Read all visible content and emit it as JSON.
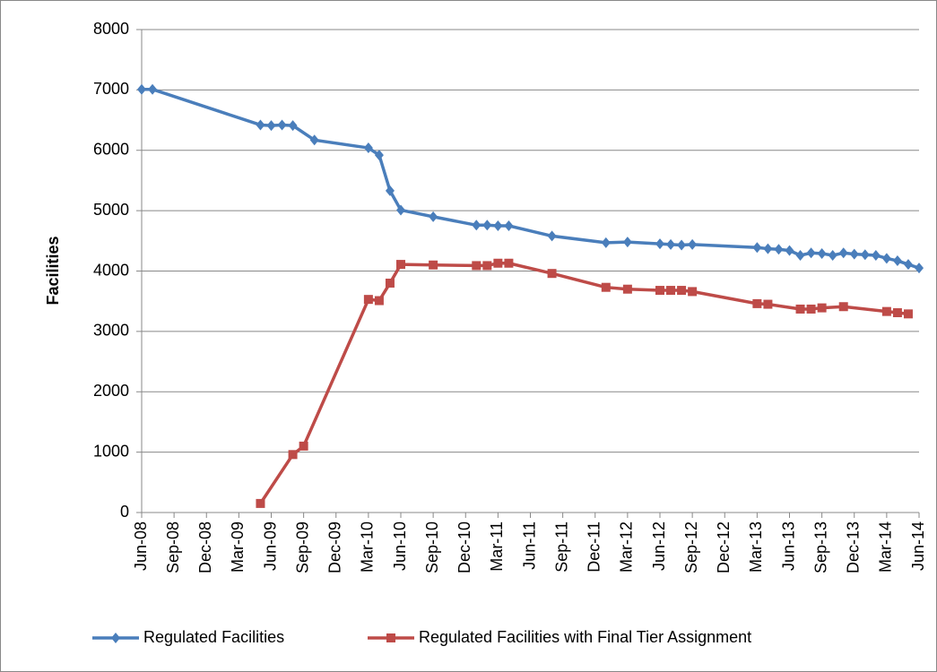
{
  "chart_data": {
    "type": "line",
    "y_label": "Facilities",
    "xlim": [
      "2008-06",
      "2014-06"
    ],
    "xticks": [
      {
        "value": "2008-06",
        "label": "Jun-08"
      },
      {
        "value": "2008-09",
        "label": "Sep-08"
      },
      {
        "value": "2008-12",
        "label": "Dec-08"
      },
      {
        "value": "2009-03",
        "label": "Mar-09"
      },
      {
        "value": "2009-06",
        "label": "Jun-09"
      },
      {
        "value": "2009-09",
        "label": "Sep-09"
      },
      {
        "value": "2009-12",
        "label": "Dec-09"
      },
      {
        "value": "2010-03",
        "label": "Mar-10"
      },
      {
        "value": "2010-06",
        "label": "Jun-10"
      },
      {
        "value": "2010-09",
        "label": "Sep-10"
      },
      {
        "value": "2010-12",
        "label": "Dec-10"
      },
      {
        "value": "2011-03",
        "label": "Mar-11"
      },
      {
        "value": "2011-06",
        "label": "Jun-11"
      },
      {
        "value": "2011-09",
        "label": "Sep-11"
      },
      {
        "value": "2011-12",
        "label": "Dec-11"
      },
      {
        "value": "2012-03",
        "label": "Mar-12"
      },
      {
        "value": "2012-06",
        "label": "Jun-12"
      },
      {
        "value": "2012-09",
        "label": "Sep-12"
      },
      {
        "value": "2012-12",
        "label": "Dec-12"
      },
      {
        "value": "2013-03",
        "label": "Mar-13"
      },
      {
        "value": "2013-06",
        "label": "Jun-13"
      },
      {
        "value": "2013-09",
        "label": "Sep-13"
      },
      {
        "value": "2013-12",
        "label": "Dec-13"
      },
      {
        "value": "2014-03",
        "label": "Mar-14"
      },
      {
        "value": "2014-06",
        "label": "Jun-14"
      }
    ],
    "ylim": [
      0,
      8000
    ],
    "yticks": [
      0,
      1000,
      2000,
      3000,
      4000,
      5000,
      6000,
      7000,
      8000
    ],
    "grid": true,
    "legend": "bottom",
    "series": [
      {
        "name": "Regulated Facilities",
        "color": "#4a7ebb",
        "marker": "diamond",
        "x": [
          "2008-06",
          "2008-07",
          "2009-05",
          "2009-06",
          "2009-07",
          "2009-08",
          "2009-10",
          "2010-03",
          "2010-04",
          "2010-05",
          "2010-06",
          "2010-09",
          "2011-01",
          "2011-02",
          "2011-03",
          "2011-04",
          "2011-08",
          "2012-01",
          "2012-03",
          "2012-06",
          "2012-07",
          "2012-08",
          "2012-09",
          "2013-03",
          "2013-04",
          "2013-05",
          "2013-06",
          "2013-07",
          "2013-08",
          "2013-09",
          "2013-10",
          "2013-11",
          "2013-12",
          "2014-01",
          "2014-02",
          "2014-03",
          "2014-04",
          "2014-05",
          "2014-06"
        ],
        "values": [
          7010,
          7010,
          6420,
          6410,
          6420,
          6410,
          6170,
          6040,
          5920,
          5330,
          5010,
          4900,
          4760,
          4760,
          4750,
          4750,
          4580,
          4470,
          4480,
          4450,
          4440,
          4430,
          4440,
          4390,
          4370,
          4360,
          4340,
          4260,
          4300,
          4290,
          4260,
          4300,
          4280,
          4270,
          4260,
          4210,
          4170,
          4110,
          4050
        ]
      },
      {
        "name": "Regulated Facilities with Final Tier Assignment",
        "color": "#be4b48",
        "marker": "square",
        "x": [
          "2009-05",
          "2009-08",
          "2009-09",
          "2010-03",
          "2010-04",
          "2010-05",
          "2010-06",
          "2010-09",
          "2011-01",
          "2011-02",
          "2011-03",
          "2011-04",
          "2011-08",
          "2012-01",
          "2012-03",
          "2012-06",
          "2012-07",
          "2012-08",
          "2012-09",
          "2013-03",
          "2013-04",
          "2013-07",
          "2013-08",
          "2013-09",
          "2013-11",
          "2014-03",
          "2014-04",
          "2014-05"
        ],
        "values": [
          150,
          960,
          1100,
          3530,
          3510,
          3800,
          4110,
          4100,
          4090,
          4090,
          4130,
          4130,
          3960,
          3730,
          3700,
          3680,
          3680,
          3680,
          3660,
          3460,
          3450,
          3370,
          3370,
          3390,
          3410,
          3330,
          3310,
          3290
        ]
      }
    ]
  }
}
